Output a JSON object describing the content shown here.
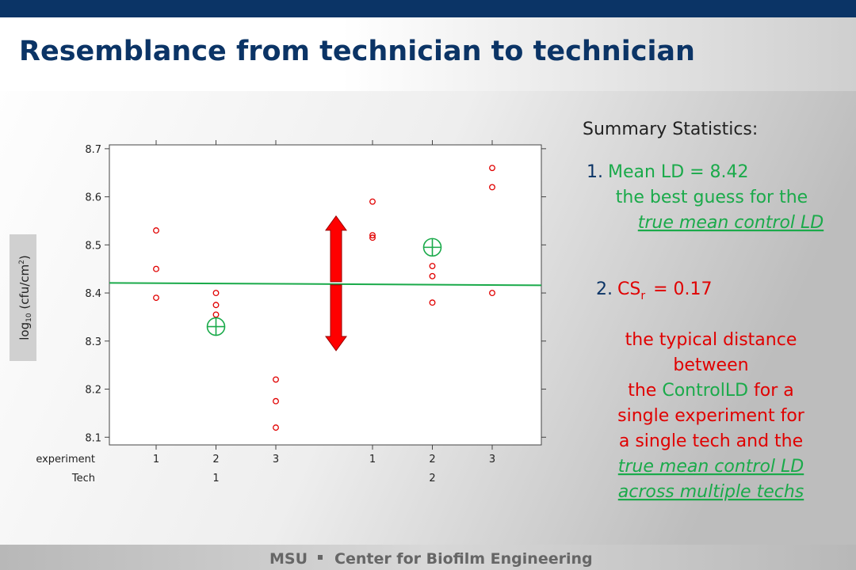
{
  "title": "Resemblance from technician to technician",
  "chart_data": {
    "type": "scatter",
    "row_labels": [
      "experiment",
      "Tech"
    ],
    "categories": [
      "1",
      "2",
      "3",
      "1",
      "2",
      "3"
    ],
    "tech_labels": [
      "1",
      "2"
    ],
    "y_label": [
      "log",
      "10",
      " (cfu/cm",
      "2",
      ")"
    ],
    "values": [
      [
        8.53,
        8.45,
        8.39
      ],
      [
        8.4,
        8.375,
        8.355
      ],
      [
        8.22,
        8.175,
        8.12
      ],
      [
        8.59,
        8.52,
        8.515
      ],
      [
        8.456,
        8.435,
        8.38
      ],
      [
        8.66,
        8.62,
        8.4
      ]
    ],
    "color": "#e00000",
    "tech_means": [
      8.33,
      8.495
    ],
    "mean_color": "#1aaa4a",
    "mean_line": [
      8.421,
      8.416
    ],
    "arrow": [
      8.28,
      8.56
    ],
    "arrow_color": "#ff0000",
    "ylim": [
      8.084,
      8.708
    ],
    "yticks": [
      8.1,
      8.2,
      8.3,
      8.4,
      8.5,
      8.6,
      8.7
    ]
  },
  "summary": {
    "heading": "Summary Statistics:",
    "item1_number": "1.",
    "item1_text": "Mean LD = 8.42",
    "item1_lines": [
      "the best guess for the",
      "true mean control LD"
    ],
    "item2_number": "2.",
    "item2_cs": "CS",
    "item2_sub": "r",
    "item2_value": "= 0.17",
    "desc_lines": [
      "the typical distance",
      "between"
    ],
    "desc_mixed": [
      "the ",
      "ControlLD",
      " for a"
    ],
    "desc_lines2": [
      "single experiment for",
      "a single tech and the"
    ],
    "desc_underlined": [
      "true mean control LD",
      "across multiple techs"
    ]
  },
  "footer": {
    "org": "MSU",
    "center": "Center for Biofilm Engineering"
  }
}
